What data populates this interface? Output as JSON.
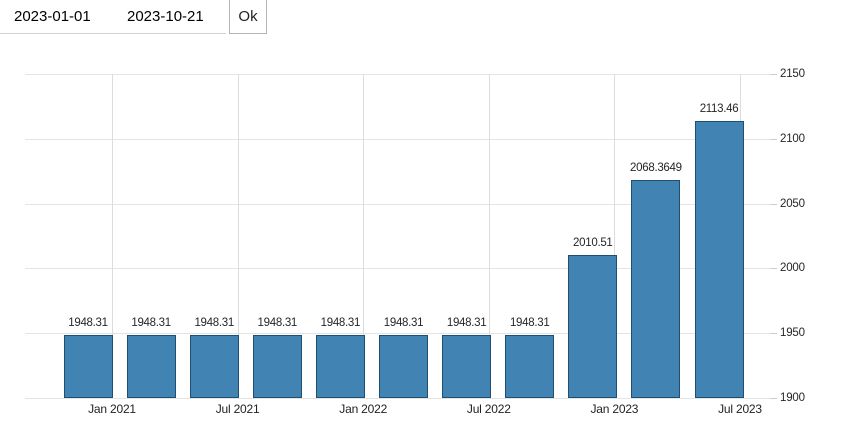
{
  "toolbar": {
    "start_date": "2023-01-01",
    "end_date": "2023-10-21",
    "ok_label": "Ok"
  },
  "chart_data": {
    "type": "bar",
    "values": [
      1948.31,
      1948.31,
      1948.31,
      1948.31,
      1948.31,
      1948.31,
      1948.31,
      1948.31,
      2010.51,
      2068.3649,
      2113.46
    ],
    "x_tick_labels": [
      "Jan 2021",
      "Jul 2021",
      "Jan 2022",
      "Jul 2022",
      "Jan 2023",
      "Jul 2023"
    ],
    "x_ticks_every_n_bars": 2,
    "y_ticks": [
      1900,
      1950,
      2000,
      2050,
      2100,
      2150
    ],
    "ylim": [
      1900,
      2150
    ],
    "y_axis_position": "right",
    "grid": true,
    "legend": "none",
    "title": "",
    "xlabel": "",
    "ylabel": "",
    "bar_color": "#4184b4",
    "bar_border_color": "#1f4f72",
    "grid_color": "#e4e4e4",
    "label_color": "#262626"
  }
}
